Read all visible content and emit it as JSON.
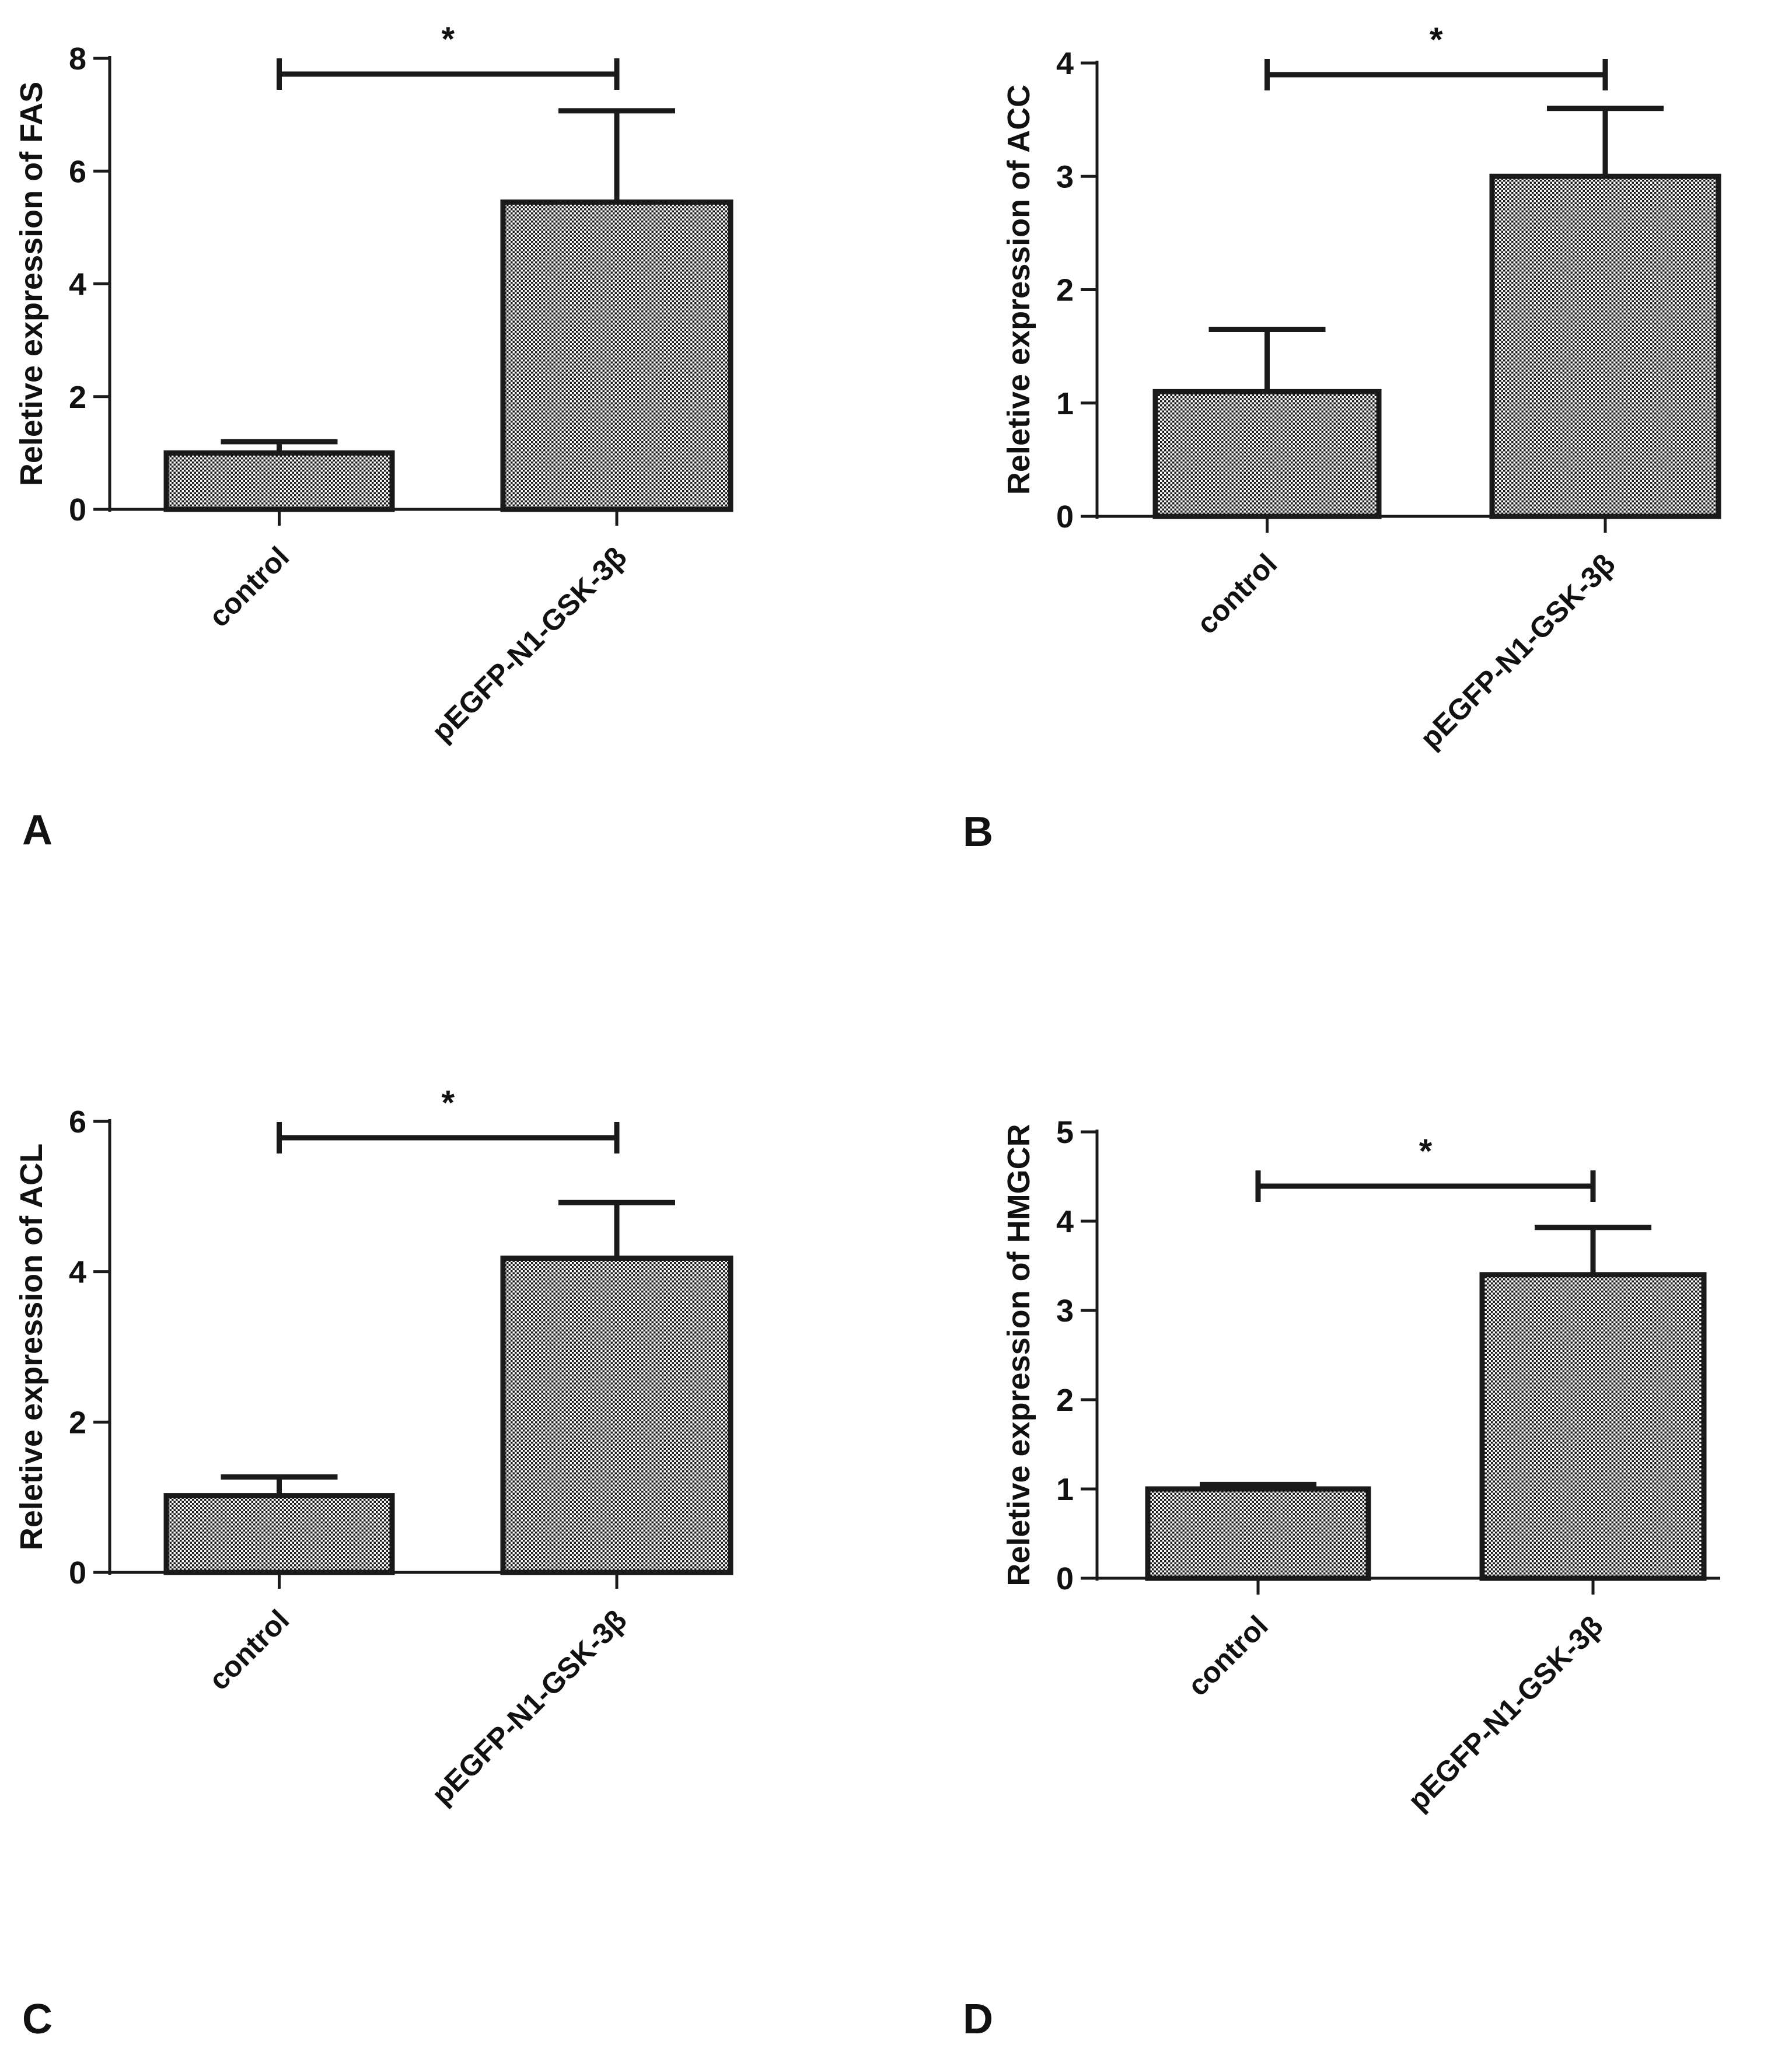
{
  "chart_data": [
    {
      "panel": "A",
      "type": "bar",
      "ylabel": "Reletive expression of FAS",
      "categories": [
        "control",
        "pEGFP-N1-GSK-3β"
      ],
      "values": [
        1.0,
        5.45
      ],
      "errors": [
        0.2,
        1.62
      ],
      "ylim": [
        0,
        8
      ],
      "yticks": [
        "0",
        "2",
        "4",
        "6",
        "8"
      ],
      "significance": {
        "from": 0,
        "to": 1,
        "label": "*"
      },
      "grid": false
    },
    {
      "panel": "B",
      "type": "bar",
      "ylabel": "Reletive expression of ACC",
      "categories": [
        "control",
        "pEGFP-N1-GSK-3β"
      ],
      "values": [
        1.1,
        3.0
      ],
      "errors": [
        0.55,
        0.6
      ],
      "ylim": [
        0,
        4
      ],
      "yticks": [
        "0",
        "1",
        "2",
        "3",
        "4"
      ],
      "significance": {
        "from": 0,
        "to": 1,
        "label": "*"
      },
      "grid": false
    },
    {
      "panel": "C",
      "type": "bar",
      "ylabel": "Reletive expression of ACL",
      "categories": [
        "control",
        "pEGFP-N1-GSK-3β"
      ],
      "values": [
        1.02,
        4.18
      ],
      "errors": [
        0.25,
        0.74
      ],
      "ylim": [
        0,
        6
      ],
      "yticks": [
        "0",
        "2",
        "4",
        "6"
      ],
      "significance": {
        "from": 0,
        "to": 1,
        "label": "*"
      },
      "grid": false
    },
    {
      "panel": "D",
      "type": "bar",
      "ylabel": "Reletive expression of HMGCR",
      "categories": [
        "control",
        "pEGFP-N1-GSK-3β"
      ],
      "values": [
        1.0,
        3.4
      ],
      "errors": [
        0.05,
        0.53
      ],
      "ylim": [
        0,
        5
      ],
      "yticks": [
        "0",
        "1",
        "2",
        "3",
        "4",
        "5"
      ],
      "significance": {
        "from": 0,
        "to": 1,
        "label": "*"
      },
      "grid": false
    }
  ]
}
